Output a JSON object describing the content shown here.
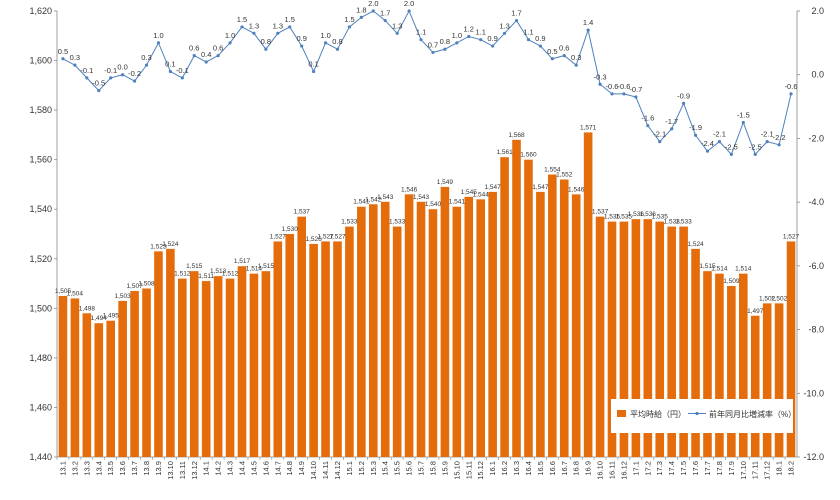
{
  "chart_data": {
    "type": "bar+line",
    "categories": [
      "13.1",
      "13.2",
      "13.3",
      "13.4",
      "13.5",
      "13.6",
      "13.7",
      "13.8",
      "13.9",
      "13.10",
      "13.11",
      "13.12",
      "14.1",
      "14.2",
      "14.3",
      "14.4",
      "14.5",
      "14.6",
      "14.7",
      "14.8",
      "14.9",
      "14.10",
      "14.11",
      "14.12",
      "15.1",
      "15.2",
      "15.3",
      "15.4",
      "15.5",
      "15.6",
      "15.7",
      "15.8",
      "15.9",
      "15.10",
      "15.11",
      "15.12",
      "16.1",
      "16.2",
      "16.3",
      "16.4",
      "16.5",
      "16.6",
      "16.7",
      "16.8",
      "16.9",
      "16.10",
      "16.11",
      "16.12",
      "17.1",
      "17.2",
      "17.3",
      "17.4",
      "17.5",
      "17.6",
      "17.7",
      "17.8",
      "17.9",
      "17.10",
      "17.11",
      "17.12",
      "18.1",
      "18.2"
    ],
    "x_tick_labels": [
      "13.1",
      "13.2",
      "13.3",
      "13.4",
      "13.5",
      "13.6",
      "13.7",
      "13.8",
      "13.9",
      "13.10",
      "13.11",
      "13.12",
      "14.1",
      "14.2",
      "14.3",
      "14.4",
      "14.5",
      "14.6",
      "14.7",
      "14.8",
      "14.9",
      "14.10",
      "14.11",
      "14.12",
      "15.1",
      "15.2",
      "15.3",
      "15.4",
      "15.5",
      "15.6",
      "15.7",
      "15.8",
      "15.9",
      "15.10",
      "15.11",
      "15.12",
      "16.1",
      "16.2",
      "16.3",
      "16.4",
      "16.5",
      "16.6",
      "16.7",
      "16.8",
      "16.9",
      "16.10",
      "16.11",
      "16.12",
      "17.1",
      "17.2",
      "17.3",
      "17.4",
      "17.5",
      "17.6",
      "17.7",
      "17.8",
      "17.9",
      "17.10",
      "17.11",
      "17.12",
      "18.1",
      "18.2"
    ],
    "bar_series": {
      "name": "平均時給（円）",
      "color": "#E46C0A",
      "values": [
        1505,
        1504,
        1498,
        1494,
        1495,
        1503,
        1507,
        1508,
        1523,
        1524,
        1512,
        1515,
        1511,
        1513,
        1512,
        1517,
        1514,
        1515,
        1527,
        1530,
        1537,
        1526,
        1527,
        1527,
        1533,
        1541,
        1542,
        1543,
        1533,
        1546,
        1543,
        1540,
        1549,
        1541,
        1545,
        1544,
        1547,
        1561,
        1568,
        1560,
        1547,
        1554,
        1552,
        1546,
        1571,
        1537,
        1535,
        1535,
        1536,
        1536,
        1535,
        1533,
        1533,
        1524,
        1515,
        1514,
        1509,
        1514,
        1497,
        1502,
        1502,
        1527
      ],
      "value_labels": [
        "1,505",
        "1,504",
        "1,498",
        "1,494",
        "1,495",
        "1,503",
        "1,507",
        "1,508",
        "1,523",
        "1,524",
        "1,512",
        "1,515",
        "1,511",
        "1,513",
        "1,512",
        "1,517",
        "1,514",
        "1,515",
        "1,527",
        "1,530",
        "1,537",
        "1,526",
        "1,527",
        "1,527",
        "1,533",
        "1,541",
        "1,542",
        "1,543",
        "1,533",
        "1,546",
        "1,543",
        "1,540",
        "1,549",
        "1,541",
        "1,545",
        "1,544",
        "1,547",
        "1,561",
        "1,568",
        "1,560",
        "1,547",
        "1,554",
        "1,552",
        "1,546",
        "1,571",
        "1,537",
        "1,535",
        "1,535",
        "1,536",
        "1,536",
        "1,535",
        "1,533",
        "1,533",
        "1,524",
        "1,515",
        "1,514",
        "1,509",
        "1,514",
        "1,497",
        "1,502",
        "1,502",
        "1,527"
      ]
    },
    "line_series": {
      "name": "前年同月比増減率（%）",
      "color": "#4F81BD",
      "values": [
        0.5,
        0.3,
        -0.1,
        -0.5,
        -0.1,
        0.0,
        -0.2,
        0.3,
        1.0,
        0.1,
        -0.1,
        0.6,
        0.4,
        0.6,
        1.0,
        1.5,
        1.3,
        0.8,
        1.3,
        1.5,
        0.9,
        0.1,
        1.0,
        0.8,
        1.5,
        1.8,
        2.0,
        1.7,
        1.3,
        2.0,
        1.1,
        0.7,
        0.8,
        1.0,
        1.2,
        1.1,
        0.9,
        1.3,
        1.7,
        1.1,
        0.9,
        0.5,
        0.6,
        0.3,
        1.4,
        -0.3,
        -0.6,
        -0.6,
        -0.7,
        -1.6,
        -2.1,
        -1.7,
        -0.9,
        -1.9,
        -2.4,
        -2.1,
        -2.5,
        -1.5,
        -2.5,
        -2.1,
        -2.2,
        -0.6
      ],
      "value_labels": [
        "0.5",
        "0.3",
        "-0.1",
        "-0.5",
        "-0.1",
        "0.0",
        "-0.2",
        "0.3",
        "1.0",
        "0.1",
        "-0.1",
        "0.6",
        "0.4",
        "0.6",
        "1.0",
        "1.5",
        "1.3",
        "0.8",
        "1.3",
        "1.5",
        "0.9",
        "0.1",
        "1.0",
        "0.8",
        "1.5",
        "1.8",
        "2.0",
        "1.7",
        "1.3",
        "2.0",
        "1.1",
        "0.7",
        "0.8",
        "1.0",
        "1.2",
        "1.1",
        "0.9",
        "1.3",
        "1.7",
        "1.1",
        "0.9",
        "0.5",
        "0.6",
        "0.3",
        "1.4",
        "-0.3",
        "-0.6",
        "-0.6",
        "-0.7",
        "-1.6",
        "-2.1",
        "-1.7",
        "-0.9",
        "-1.9",
        "-2.4",
        "-2.1",
        "-2.5",
        "-1.5",
        "-2.5",
        "-2.1",
        "-2.2",
        "-0.6"
      ]
    },
    "y_left": {
      "min": 1440,
      "max": 1620,
      "step": 20,
      "tick_labels": [
        "1,440",
        "1,460",
        "1,480",
        "1,500",
        "1,520",
        "1,540",
        "1,560",
        "1,580",
        "1,600",
        "1,620"
      ]
    },
    "y_right": {
      "min": -12.0,
      "max": 2.0,
      "step": 2.0,
      "tick_labels": [
        "-12.0",
        "-10.0",
        "-8.0",
        "-6.0",
        "-4.0",
        "-2.0",
        "0.0",
        "2.0"
      ]
    },
    "grid": false,
    "legend": {
      "placement": "bottom-right",
      "items": [
        "平均時給（円）",
        "前年同月比増減率（%）"
      ]
    },
    "title": "",
    "xlabel": "",
    "ylabel": ""
  }
}
